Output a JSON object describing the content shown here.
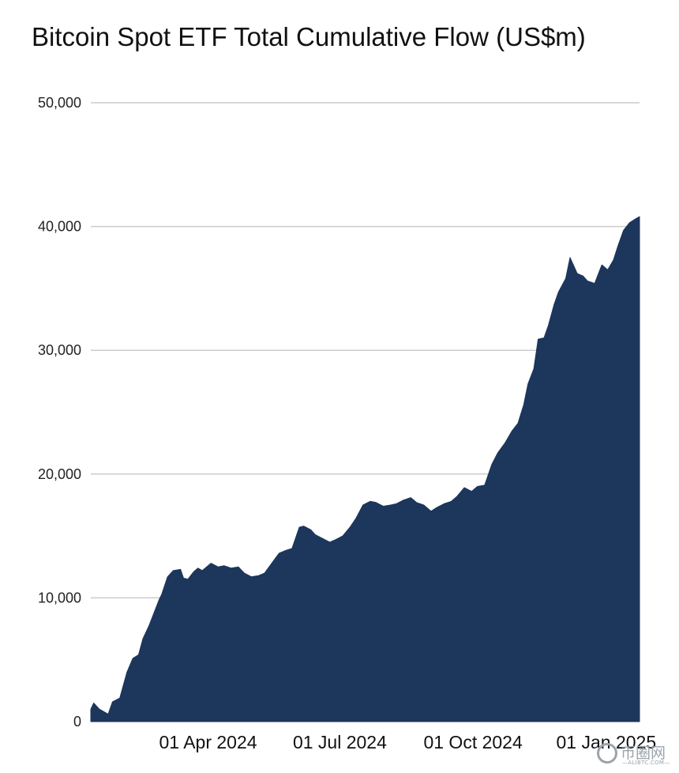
{
  "chart_data": {
    "type": "area",
    "title": "Bitcoin Spot ETF Total Cumulative Flow (US$m)",
    "xlabel": "",
    "ylabel": "",
    "ylim": [
      0,
      50000
    ],
    "yticks": [
      0,
      10000,
      20000,
      30000,
      40000,
      50000
    ],
    "ytick_labels": [
      "0",
      "10,000",
      "20,000",
      "30,000",
      "40,000",
      "50,000"
    ],
    "xlim": [
      "2024-01-11",
      "2025-01-24"
    ],
    "xticks": [
      "2024-04-01",
      "2024-07-01",
      "2024-10-01",
      "2025-01-01"
    ],
    "xtick_labels": [
      "01 Apr 2024",
      "01 Jul 2024",
      "01 Oct 2024",
      "01 Jan 2025"
    ],
    "grid": true,
    "legend": "none",
    "color": "#1c365c",
    "series": [
      {
        "x": [
          "2024-01-11",
          "2024-01-13",
          "2024-01-17",
          "2024-01-23",
          "2024-01-26",
          "2024-01-31",
          "2024-02-05",
          "2024-02-09",
          "2024-02-13",
          "2024-02-16",
          "2024-02-20",
          "2024-02-23",
          "2024-02-27",
          "2024-02-29",
          "2024-03-04",
          "2024-03-08",
          "2024-03-13",
          "2024-03-15",
          "2024-03-18",
          "2024-03-22",
          "2024-03-25",
          "2024-03-28",
          "2024-04-03",
          "2024-04-08",
          "2024-04-12",
          "2024-04-17",
          "2024-04-22",
          "2024-04-26",
          "2024-05-01",
          "2024-05-06",
          "2024-05-10",
          "2024-05-15",
          "2024-05-20",
          "2024-05-24",
          "2024-05-29",
          "2024-06-03",
          "2024-06-06",
          "2024-06-11",
          "2024-06-14",
          "2024-06-19",
          "2024-06-24",
          "2024-06-28",
          "2024-07-03",
          "2024-07-08",
          "2024-07-12",
          "2024-07-17",
          "2024-07-22",
          "2024-07-26",
          "2024-07-31",
          "2024-08-05",
          "2024-08-09",
          "2024-08-14",
          "2024-08-19",
          "2024-08-23",
          "2024-08-28",
          "2024-09-02",
          "2024-09-06",
          "2024-09-11",
          "2024-09-16",
          "2024-09-20",
          "2024-09-25",
          "2024-09-30",
          "2024-10-04",
          "2024-10-09",
          "2024-10-14",
          "2024-10-18",
          "2024-10-23",
          "2024-10-28",
          "2024-11-01",
          "2024-11-05",
          "2024-11-08",
          "2024-11-12",
          "2024-11-15",
          "2024-11-19",
          "2024-11-22",
          "2024-11-26",
          "2024-11-29",
          "2024-12-04",
          "2024-12-07",
          "2024-12-12",
          "2024-12-16",
          "2024-12-19",
          "2024-12-24",
          "2024-12-29",
          "2025-01-02",
          "2025-01-06",
          "2025-01-09",
          "2025-01-13",
          "2025-01-17",
          "2025-01-21",
          "2025-01-24"
        ],
        "values": [
          1000,
          1500,
          1000,
          600,
          1600,
          1900,
          4000,
          5100,
          5400,
          6700,
          7700,
          8600,
          9800,
          10300,
          11700,
          12200,
          12300,
          11600,
          11500,
          12100,
          12400,
          12200,
          12800,
          12500,
          12600,
          12400,
          12500,
          12000,
          11700,
          11800,
          12000,
          12800,
          13600,
          13800,
          14000,
          15700,
          15800,
          15500,
          15100,
          14800,
          14500,
          14700,
          15000,
          15700,
          16400,
          17500,
          17800,
          17700,
          17400,
          17500,
          17600,
          17900,
          18100,
          17700,
          17500,
          17000,
          17300,
          17600,
          17800,
          18200,
          18900,
          18600,
          19000,
          19100,
          20800,
          21700,
          22500,
          23500,
          24100,
          25600,
          27300,
          28500,
          30900,
          31000,
          32000,
          33700,
          34700,
          35800,
          37500,
          36200,
          36000,
          35600,
          35400,
          36900,
          36500,
          37300,
          38400,
          39700,
          40300,
          40600,
          40800
        ]
      }
    ]
  },
  "watermark": {
    "name": "币圈网",
    "url": "—ALIBTC.COM—"
  }
}
